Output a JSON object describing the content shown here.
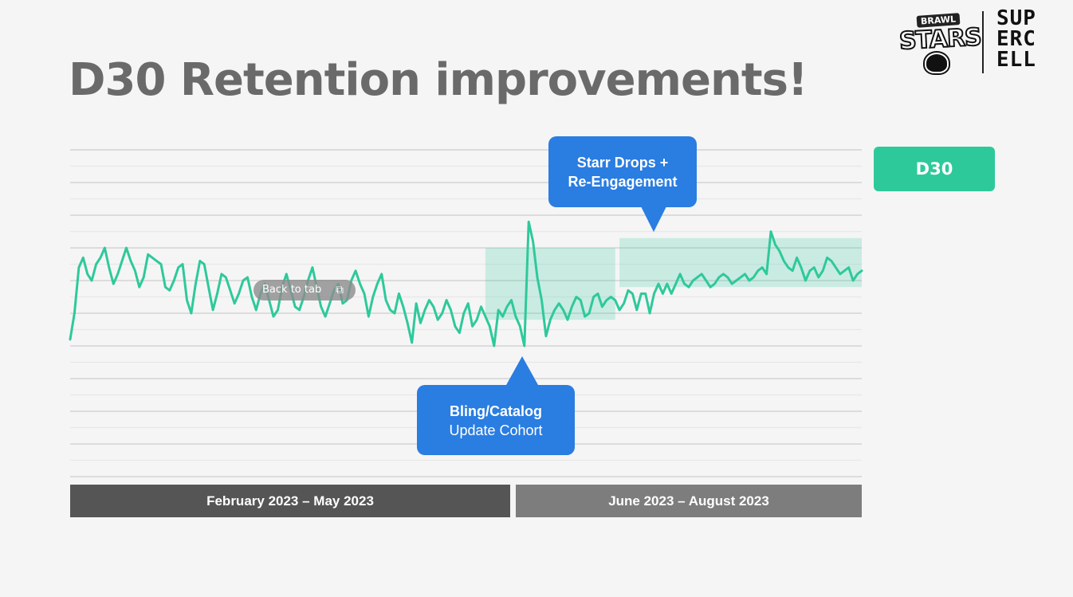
{
  "title": "D30 Retention improvements!",
  "logos": {
    "brawl_top": "BRAWL",
    "brawl_main": "STARS",
    "supercell_lines": [
      "SUP",
      "ERC",
      "ELL"
    ]
  },
  "legend": {
    "label": "D30",
    "color": "#2ec99a"
  },
  "overlay": {
    "label": "Back to tab",
    "icon": "external-link-icon"
  },
  "callouts": {
    "top": [
      "Starr Drops +",
      "Re-Engagement"
    ],
    "bottom": [
      "Bling/Catalog",
      "Update Cohort"
    ]
  },
  "periods": [
    "February 2023 – May 2023",
    "June 2023 – August 2023"
  ],
  "chart_data": {
    "type": "line",
    "xlabel": "",
    "ylabel": "",
    "grid": true,
    "ylim": [
      0,
      100
    ],
    "x": [
      0,
      1,
      2,
      3,
      4,
      5,
      6,
      7,
      8,
      9,
      10,
      11,
      12,
      13,
      14,
      15,
      16,
      17,
      18,
      19,
      20,
      21,
      22,
      23,
      24,
      25,
      26,
      27,
      28,
      29,
      30,
      31,
      32,
      33,
      34,
      35,
      36,
      37,
      38,
      39,
      40,
      41,
      42,
      43,
      44,
      45,
      46,
      47,
      48,
      49,
      50,
      51,
      52,
      53,
      54,
      55,
      56,
      57,
      58,
      59,
      60,
      61,
      62,
      63,
      64,
      65,
      66,
      67,
      68,
      69,
      70,
      71,
      72,
      73,
      74,
      75,
      76,
      77,
      78,
      79,
      80,
      81,
      82,
      83,
      84,
      85,
      86,
      87,
      88,
      89,
      90,
      91,
      92,
      93,
      94,
      95,
      96,
      97,
      98,
      99,
      100,
      101,
      102,
      103,
      104,
      105,
      106,
      107,
      108,
      109,
      110,
      111,
      112,
      113,
      114,
      115,
      116,
      117,
      118,
      119,
      120,
      121,
      122,
      123,
      124,
      125,
      126,
      127,
      128,
      129,
      130,
      131,
      132,
      133,
      134,
      135,
      136,
      137,
      138,
      139,
      140,
      141,
      142,
      143,
      144,
      145,
      146,
      147,
      148,
      149,
      150,
      151,
      152,
      153,
      154,
      155,
      156,
      157,
      158,
      159,
      160,
      161,
      162,
      163,
      164,
      165,
      166,
      167,
      168,
      169,
      170,
      171,
      172,
      173,
      174,
      175,
      176,
      177,
      178,
      179,
      180,
      181,
      182,
      183
    ],
    "series": [
      {
        "color": "#2ec99a",
        "values": [
          42,
          50,
          64,
          67,
          62,
          60,
          65,
          67,
          70,
          64,
          59,
          62,
          66,
          70,
          66,
          63,
          58,
          61,
          68,
          67,
          66,
          65,
          58,
          57,
          60,
          64,
          65,
          54,
          50,
          59,
          66,
          65,
          58,
          51,
          56,
          62,
          61,
          57,
          53,
          56,
          60,
          61,
          55,
          51,
          56,
          59,
          54,
          49,
          51,
          58,
          62,
          57,
          52,
          51,
          55,
          60,
          64,
          58,
          52,
          49,
          53,
          57,
          59,
          53,
          54,
          60,
          63,
          59,
          56,
          49,
          55,
          59,
          62,
          54,
          51,
          50,
          56,
          52,
          47,
          41,
          53,
          47,
          51,
          54,
          52,
          48,
          50,
          54,
          51,
          46,
          44,
          50,
          53,
          46,
          48,
          52,
          49,
          46,
          40,
          51,
          49,
          52,
          54,
          49,
          46,
          40,
          78,
          72,
          61,
          54,
          43,
          48,
          51,
          53,
          51,
          48,
          52,
          55,
          54,
          49,
          50,
          55,
          56,
          52,
          54,
          55,
          54,
          51,
          53,
          57,
          56,
          51,
          56,
          56,
          50,
          56,
          59,
          56,
          59,
          56,
          59,
          62,
          59,
          58,
          60,
          61,
          62,
          60,
          58,
          59,
          61,
          62,
          61,
          59,
          60,
          61,
          62,
          60,
          61,
          63,
          64,
          62,
          75,
          71,
          69,
          66,
          64,
          63,
          67,
          64,
          60,
          63,
          64,
          61,
          63,
          67,
          66,
          64,
          62,
          63,
          64,
          60,
          62,
          63
        ]
      }
    ],
    "bands": [
      {
        "x_from": 96,
        "x_to": 126,
        "y_from": 48,
        "y_to": 70
      },
      {
        "x_from": 127,
        "x_to": 183,
        "y_from": 58,
        "y_to": 73
      }
    ]
  }
}
